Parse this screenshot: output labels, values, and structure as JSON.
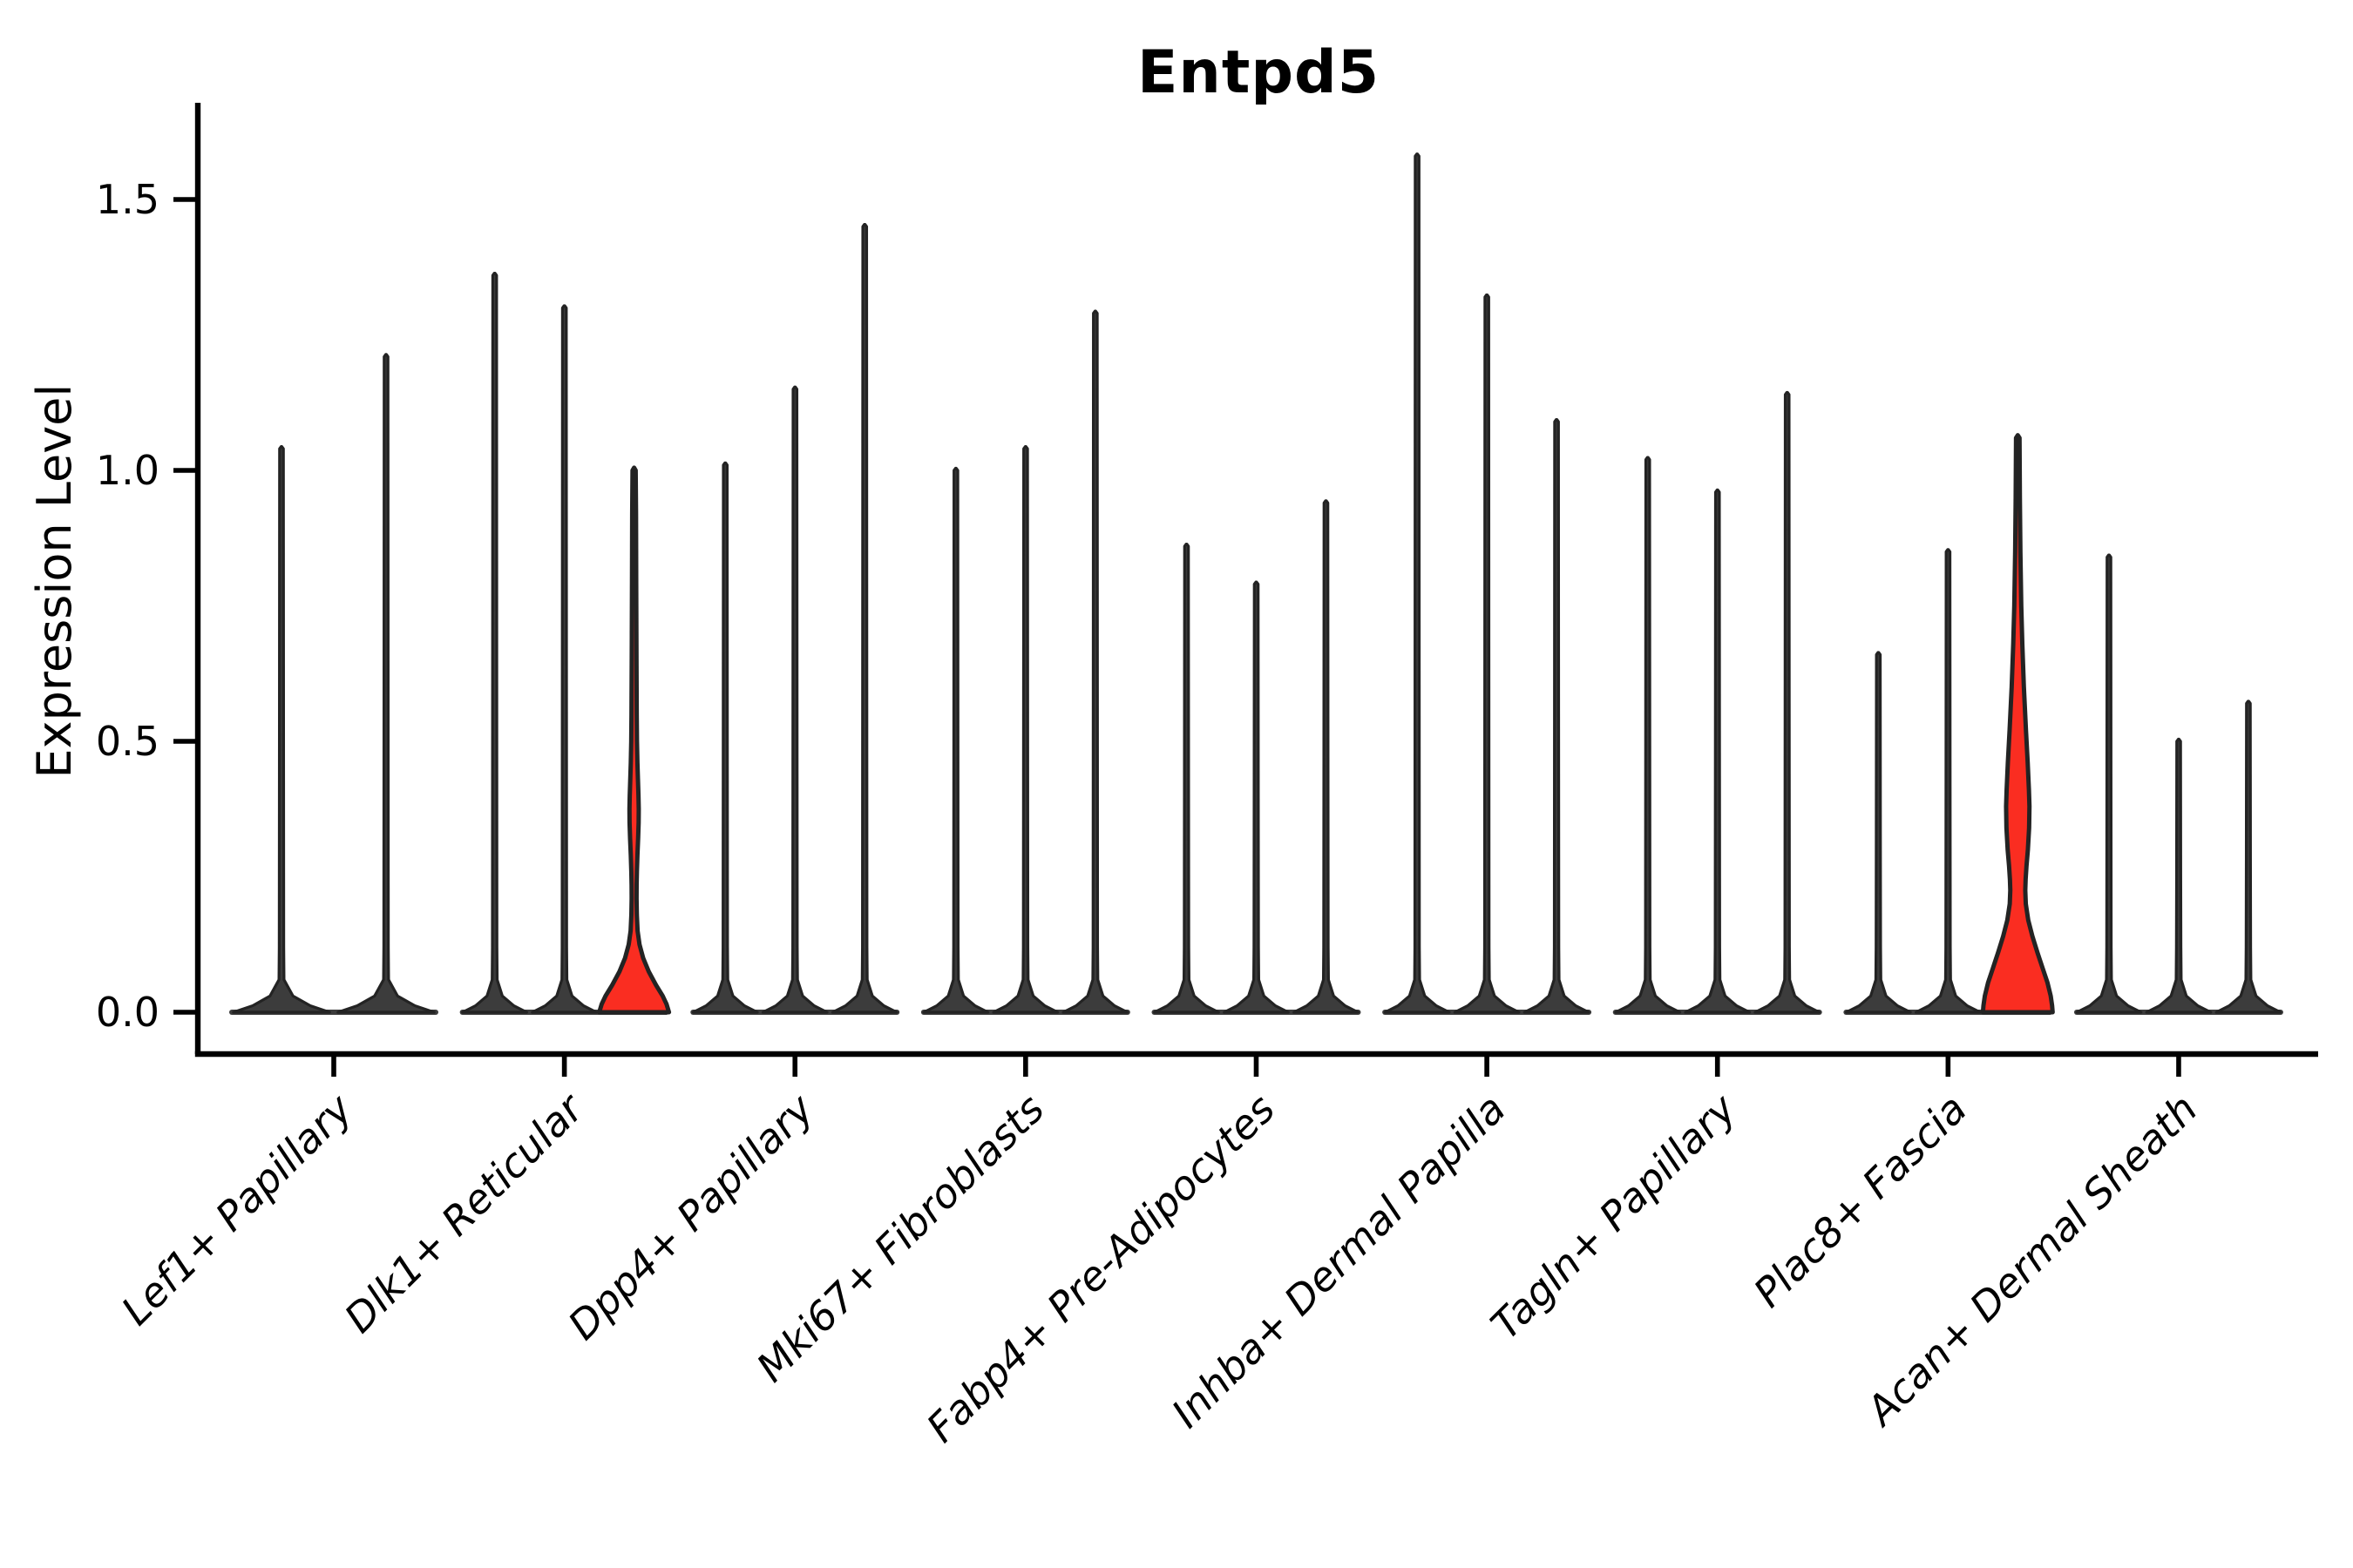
{
  "chart_data": {
    "type": "violin",
    "title": "Entpd5",
    "ylabel": "Expression Level",
    "xlabel": "",
    "y_ticks": [
      0.0,
      0.5,
      1.0,
      1.5
    ],
    "ylim": [
      -0.08,
      1.68
    ],
    "grid": false,
    "legend": "none",
    "style_note": "split violin plot, thin spike violins with flat bases at zero; two violins highlighted in red",
    "colors": {
      "highlight_fill": "#fa2d21",
      "violin_fill": "#3c3c3c",
      "violin_outline": "#232323",
      "axis": "#000000"
    },
    "categories": [
      {
        "label": "Lef1+ Papillary",
        "violins": [
          {
            "max": 1.04
          },
          {
            "max": 1.21
          }
        ]
      },
      {
        "label": "Dlk1+ Reticular",
        "violins": [
          {
            "max": 1.36
          },
          {
            "max": 1.3
          },
          {
            "max": 1.0,
            "highlighted": true,
            "profile": [
              [
                1.005,
                0.0
              ],
              [
                1.0,
                0.045
              ],
              [
                0.92,
                0.055
              ],
              [
                0.8,
                0.06
              ],
              [
                0.65,
                0.068
              ],
              [
                0.55,
                0.075
              ],
              [
                0.5,
                0.082
              ],
              [
                0.46,
                0.095
              ],
              [
                0.43,
                0.11
              ],
              [
                0.4,
                0.125
              ],
              [
                0.375,
                0.133
              ],
              [
                0.35,
                0.13
              ],
              [
                0.32,
                0.115
              ],
              [
                0.29,
                0.095
              ],
              [
                0.26,
                0.08
              ],
              [
                0.235,
                0.072
              ],
              [
                0.21,
                0.07
              ],
              [
                0.18,
                0.078
              ],
              [
                0.15,
                0.1
              ],
              [
                0.125,
                0.155
              ],
              [
                0.1,
                0.26
              ],
              [
                0.075,
                0.42
              ],
              [
                0.05,
                0.63
              ],
              [
                0.03,
                0.82
              ],
              [
                0.015,
                0.93
              ],
              [
                0.0,
                1.0
              ]
            ]
          }
        ]
      },
      {
        "label": "Dpp4+ Papillary",
        "violins": [
          {
            "max": 1.01
          },
          {
            "max": 1.15
          },
          {
            "max": 1.45
          }
        ]
      },
      {
        "label": "Mki67+ Fibroblasts",
        "violins": [
          {
            "max": 1.0
          },
          {
            "max": 1.04
          },
          {
            "max": 1.29
          }
        ]
      },
      {
        "label": "Fabp4+ Pre-Adipocytes",
        "violins": [
          {
            "max": 0.86
          },
          {
            "max": 0.79
          },
          {
            "max": 0.94
          }
        ]
      },
      {
        "label": "Inhba+ Dermal Papilla",
        "violins": [
          {
            "max": 1.58
          },
          {
            "max": 1.32
          },
          {
            "max": 1.09
          }
        ]
      },
      {
        "label": "Tagln+ Papillary",
        "violins": [
          {
            "max": 1.02
          },
          {
            "max": 0.96
          },
          {
            "max": 1.14
          }
        ]
      },
      {
        "label": "Plac8+ Fascia",
        "violins": [
          {
            "max": 0.66
          },
          {
            "max": 0.85
          },
          {
            "max": 1.06,
            "highlighted": true,
            "profile": [
              [
                1.065,
                0.0
              ],
              [
                1.06,
                0.05
              ],
              [
                0.95,
                0.06
              ],
              [
                0.85,
                0.075
              ],
              [
                0.75,
                0.1
              ],
              [
                0.68,
                0.13
              ],
              [
                0.6,
                0.175
              ],
              [
                0.52,
                0.235
              ],
              [
                0.46,
                0.285
              ],
              [
                0.41,
                0.32
              ],
              [
                0.38,
                0.335
              ],
              [
                0.34,
                0.325
              ],
              [
                0.3,
                0.29
              ],
              [
                0.27,
                0.25
              ],
              [
                0.245,
                0.225
              ],
              [
                0.225,
                0.215
              ],
              [
                0.2,
                0.23
              ],
              [
                0.17,
                0.3
              ],
              [
                0.14,
                0.42
              ],
              [
                0.11,
                0.565
              ],
              [
                0.08,
                0.72
              ],
              [
                0.055,
                0.85
              ],
              [
                0.03,
                0.945
              ],
              [
                0.012,
                0.985
              ],
              [
                0.0,
                1.0
              ]
            ]
          }
        ]
      },
      {
        "label": "Acan+ Dermal Sheath",
        "violins": [
          {
            "max": 0.84
          },
          {
            "max": 0.5
          },
          {
            "max": 0.57
          }
        ]
      }
    ]
  }
}
